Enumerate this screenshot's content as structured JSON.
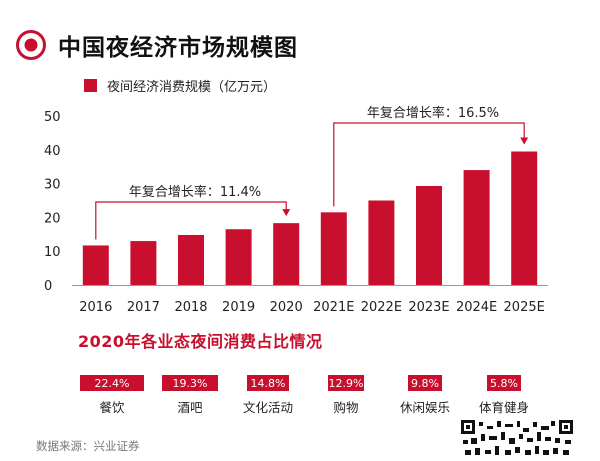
{
  "header": {
    "title": "中国夜经济市场规模图",
    "icon": "target-icon"
  },
  "legend": {
    "label": "夜间经济消费规模（亿万元）",
    "color": "#c8102e"
  },
  "annotations": {
    "cagr_early": "年复合增长率：11.4%",
    "cagr_late": "年复合增长率：16.5%"
  },
  "share": {
    "title": "2020年各业态夜间消费占比情况",
    "items": [
      {
        "label": "餐饮",
        "value": "22.4%",
        "pct": 22.4
      },
      {
        "label": "酒吧",
        "value": "19.3%",
        "pct": 19.3
      },
      {
        "label": "文化活动",
        "value": "14.8%",
        "pct": 14.8
      },
      {
        "label": "购物",
        "value": "12.9%",
        "pct": 12.9
      },
      {
        "label": "休闲娱乐",
        "value": "9.8%",
        "pct": 9.8
      },
      {
        "label": "体育健身",
        "value": "5.8%",
        "pct": 5.8
      }
    ]
  },
  "footer": {
    "source": "数据来源：兴业证券"
  },
  "colors": {
    "accent": "#c8102e",
    "axis": "#999999"
  },
  "chart_data": {
    "type": "bar",
    "categories": [
      "2016",
      "2017",
      "2018",
      "2019",
      "2020",
      "2021E",
      "2022E",
      "2023E",
      "2024E",
      "2025E"
    ],
    "series": [
      {
        "name": "夜间经济消费规模（亿万元）",
        "values": [
          11.7,
          13.0,
          14.8,
          16.5,
          18.3,
          21.5,
          25.0,
          29.3,
          34.0,
          39.5
        ]
      }
    ],
    "yticks": [
      0,
      10,
      20,
      30,
      40,
      50
    ],
    "ylim": [
      0,
      50
    ],
    "grid": false,
    "legend_position": "top-left"
  }
}
